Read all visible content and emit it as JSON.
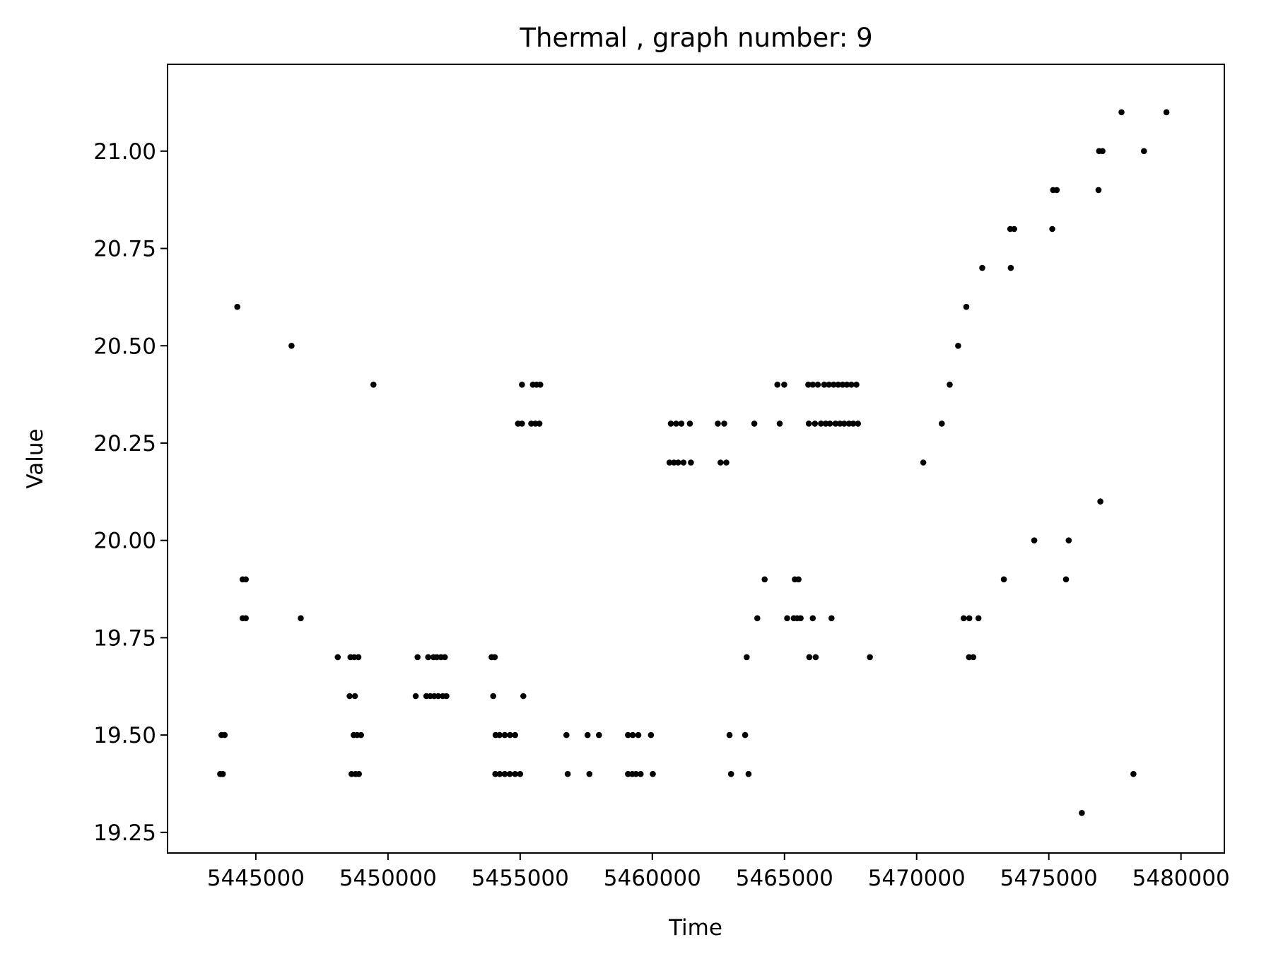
{
  "chart_data": {
    "type": "scatter",
    "title": "Thermal , graph number: 9",
    "xlabel": "Time",
    "ylabel": "Value",
    "xlim": [
      5441660,
      5481640
    ],
    "ylim": [
      19.197,
      21.223
    ],
    "xticks": [
      5445000,
      5450000,
      5455000,
      5460000,
      5465000,
      5470000,
      5475000,
      5480000
    ],
    "xtick_labels": [
      "5445000",
      "5450000",
      "5455000",
      "5460000",
      "5465000",
      "5470000",
      "5475000",
      "5480000"
    ],
    "yticks": [
      19.25,
      19.5,
      19.75,
      20.0,
      20.25,
      20.5,
      20.75,
      21.0
    ],
    "ytick_labels": [
      "19.25",
      "19.50",
      "19.75",
      "20.00",
      "20.25",
      "20.50",
      "20.75",
      "21.00"
    ],
    "marker_color": "#000000",
    "grid": false,
    "points": [
      [
        5443650,
        19.4
      ],
      [
        5443750,
        19.4
      ],
      [
        5443700,
        19.5
      ],
      [
        5443820,
        19.5
      ],
      [
        5444300,
        20.6
      ],
      [
        5444500,
        19.9
      ],
      [
        5444620,
        19.9
      ],
      [
        5444500,
        19.8
      ],
      [
        5444620,
        19.8
      ],
      [
        5446350,
        20.5
      ],
      [
        5446700,
        19.8
      ],
      [
        5448100,
        19.7
      ],
      [
        5448580,
        19.7
      ],
      [
        5448720,
        19.7
      ],
      [
        5448880,
        19.7
      ],
      [
        5448550,
        19.6
      ],
      [
        5448750,
        19.6
      ],
      [
        5448700,
        19.5
      ],
      [
        5448830,
        19.5
      ],
      [
        5448980,
        19.5
      ],
      [
        5448620,
        19.4
      ],
      [
        5448770,
        19.4
      ],
      [
        5448900,
        19.4
      ],
      [
        5449450,
        20.4
      ],
      [
        5451120,
        19.7
      ],
      [
        5451520,
        19.7
      ],
      [
        5451720,
        19.7
      ],
      [
        5451850,
        19.7
      ],
      [
        5452000,
        19.7
      ],
      [
        5452150,
        19.7
      ],
      [
        5451050,
        19.6
      ],
      [
        5451450,
        19.6
      ],
      [
        5451600,
        19.6
      ],
      [
        5451750,
        19.6
      ],
      [
        5451900,
        19.6
      ],
      [
        5452070,
        19.6
      ],
      [
        5452210,
        19.6
      ],
      [
        5453920,
        19.7
      ],
      [
        5454040,
        19.7
      ],
      [
        5453980,
        19.6
      ],
      [
        5454070,
        19.5
      ],
      [
        5454220,
        19.5
      ],
      [
        5454420,
        19.5
      ],
      [
        5454620,
        19.5
      ],
      [
        5454810,
        19.5
      ],
      [
        5454060,
        19.4
      ],
      [
        5454230,
        19.4
      ],
      [
        5454420,
        19.4
      ],
      [
        5454610,
        19.4
      ],
      [
        5454810,
        19.4
      ],
      [
        5455000,
        19.4
      ],
      [
        5455120,
        19.6
      ],
      [
        5454920,
        20.3
      ],
      [
        5455070,
        20.3
      ],
      [
        5455420,
        20.3
      ],
      [
        5455580,
        20.3
      ],
      [
        5455730,
        20.3
      ],
      [
        5455070,
        20.4
      ],
      [
        5455480,
        20.4
      ],
      [
        5455620,
        20.4
      ],
      [
        5455760,
        20.4
      ],
      [
        5456750,
        19.5
      ],
      [
        5456800,
        19.4
      ],
      [
        5457550,
        19.5
      ],
      [
        5457620,
        19.4
      ],
      [
        5457980,
        19.5
      ],
      [
        5459080,
        19.5
      ],
      [
        5459260,
        19.5
      ],
      [
        5459470,
        19.5
      ],
      [
        5459950,
        19.5
      ],
      [
        5459080,
        19.4
      ],
      [
        5459240,
        19.4
      ],
      [
        5459380,
        19.4
      ],
      [
        5459560,
        19.4
      ],
      [
        5460020,
        19.4
      ],
      [
        5460700,
        20.3
      ],
      [
        5460900,
        20.3
      ],
      [
        5461100,
        20.3
      ],
      [
        5461420,
        20.3
      ],
      [
        5460650,
        20.2
      ],
      [
        5460820,
        20.2
      ],
      [
        5460980,
        20.2
      ],
      [
        5461180,
        20.2
      ],
      [
        5461460,
        20.2
      ],
      [
        5462480,
        20.3
      ],
      [
        5462720,
        20.3
      ],
      [
        5462580,
        20.2
      ],
      [
        5462800,
        20.2
      ],
      [
        5462920,
        19.5
      ],
      [
        5462980,
        19.4
      ],
      [
        5463510,
        19.5
      ],
      [
        5463570,
        19.7
      ],
      [
        5463640,
        19.4
      ],
      [
        5463860,
        20.3
      ],
      [
        5463970,
        19.8
      ],
      [
        5464250,
        19.9
      ],
      [
        5464730,
        20.4
      ],
      [
        5464990,
        20.4
      ],
      [
        5464820,
        20.3
      ],
      [
        5465100,
        19.8
      ],
      [
        5465350,
        19.8
      ],
      [
        5465480,
        19.8
      ],
      [
        5465610,
        19.8
      ],
      [
        5465390,
        19.9
      ],
      [
        5465530,
        19.9
      ],
      [
        5466070,
        19.8
      ],
      [
        5466780,
        19.8
      ],
      [
        5465940,
        19.7
      ],
      [
        5466180,
        19.7
      ],
      [
        5465900,
        20.4
      ],
      [
        5466070,
        20.4
      ],
      [
        5466260,
        20.4
      ],
      [
        5466500,
        20.4
      ],
      [
        5466680,
        20.4
      ],
      [
        5466860,
        20.4
      ],
      [
        5467030,
        20.4
      ],
      [
        5467200,
        20.4
      ],
      [
        5467360,
        20.4
      ],
      [
        5467530,
        20.4
      ],
      [
        5467720,
        20.4
      ],
      [
        5465920,
        20.3
      ],
      [
        5466150,
        20.3
      ],
      [
        5466380,
        20.3
      ],
      [
        5466560,
        20.3
      ],
      [
        5466720,
        20.3
      ],
      [
        5466930,
        20.3
      ],
      [
        5467100,
        20.3
      ],
      [
        5467260,
        20.3
      ],
      [
        5467440,
        20.3
      ],
      [
        5467600,
        20.3
      ],
      [
        5467780,
        20.3
      ],
      [
        5468230,
        19.7
      ],
      [
        5470250,
        20.2
      ],
      [
        5470950,
        20.3
      ],
      [
        5471250,
        20.4
      ],
      [
        5471570,
        20.5
      ],
      [
        5471880,
        20.6
      ],
      [
        5471780,
        19.8
      ],
      [
        5471990,
        19.8
      ],
      [
        5472340,
        19.8
      ],
      [
        5471980,
        19.7
      ],
      [
        5472140,
        19.7
      ],
      [
        5472480,
        20.7
      ],
      [
        5473300,
        19.9
      ],
      [
        5473560,
        20.7
      ],
      [
        5473540,
        20.8
      ],
      [
        5473690,
        20.8
      ],
      [
        5474450,
        20.0
      ],
      [
        5475130,
        20.8
      ],
      [
        5475160,
        20.9
      ],
      [
        5475300,
        20.9
      ],
      [
        5475650,
        19.9
      ],
      [
        5475750,
        20.0
      ],
      [
        5476250,
        19.3
      ],
      [
        5476880,
        20.9
      ],
      [
        5476900,
        21.0
      ],
      [
        5477030,
        21.0
      ],
      [
        5476950,
        20.1
      ],
      [
        5477750,
        21.1
      ],
      [
        5478200,
        19.4
      ],
      [
        5478600,
        21.0
      ],
      [
        5479450,
        21.1
      ]
    ]
  }
}
